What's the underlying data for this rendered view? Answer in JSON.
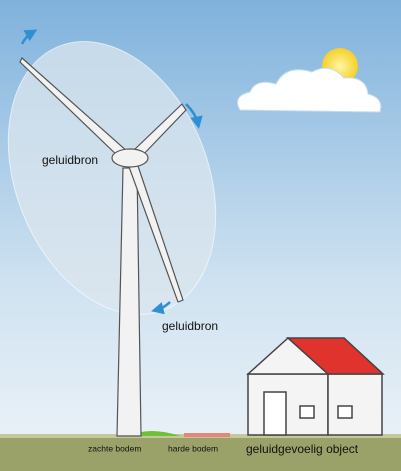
{
  "labels": {
    "source_hub": "geluidbron",
    "source_blade": "geluidbron",
    "soft_ground": "zachte bodem",
    "hard_ground": "harde bodem",
    "receiver": "geluidgevoelig object"
  }
}
